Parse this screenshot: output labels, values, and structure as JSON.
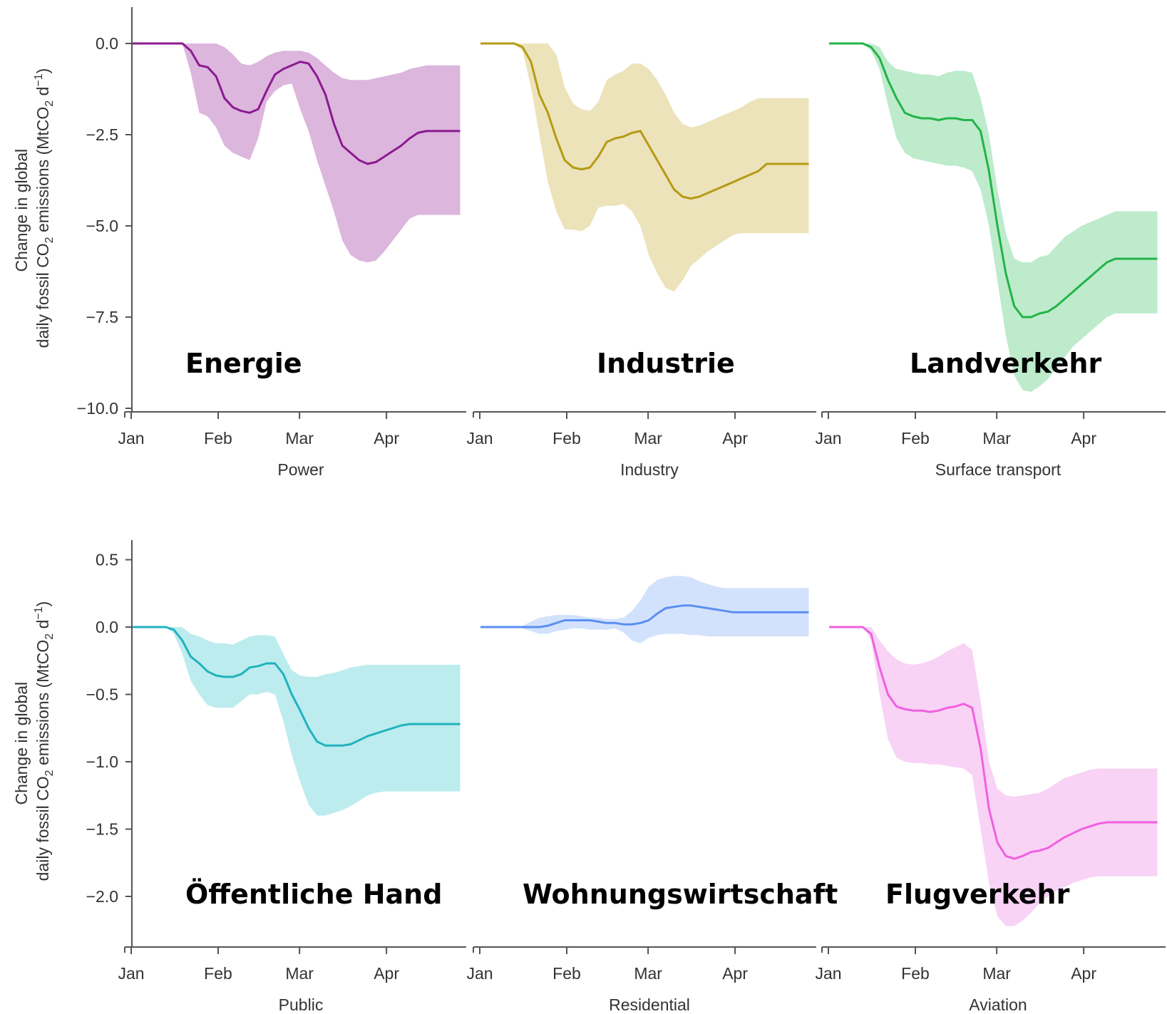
{
  "months": [
    "Jan",
    "Feb",
    "Mar",
    "Apr"
  ],
  "y_axis_label": {
    "line1": "Change in global",
    "line2": "daily fossil CO",
    "sub": "2",
    "line2_rest": " emissions (MtCO",
    "sub2": "2",
    "unit_rest": " d",
    "sup": "−1",
    "close": ")"
  },
  "chart_data": [
    {
      "type": "area",
      "xlabel": "Power",
      "annotation": "Energie",
      "color": "#8b1a8f",
      "fill": "#dcb6dd",
      "ylim": [
        -10,
        1
      ],
      "yticks": [
        0.0,
        -2.5,
        -5.0,
        -7.5,
        -10.0
      ],
      "x_days": [
        0,
        3,
        6,
        9,
        12,
        15,
        18,
        21,
        24,
        27,
        30,
        33,
        36,
        39,
        42,
        45,
        48,
        51,
        54,
        57,
        60,
        63,
        66,
        69,
        72,
        75,
        78,
        81,
        84,
        87,
        90,
        93,
        96,
        99,
        102,
        105,
        108,
        111,
        114,
        117
      ],
      "mean": [
        0,
        0,
        0,
        0,
        0,
        0,
        0,
        -0.2,
        -0.6,
        -0.65,
        -0.9,
        -1.5,
        -1.75,
        -1.85,
        -1.9,
        -1.8,
        -1.3,
        -0.85,
        -0.7,
        -0.6,
        -0.5,
        -0.55,
        -0.9,
        -1.4,
        -2.2,
        -2.8,
        -3.0,
        -3.2,
        -3.3,
        -3.25,
        -3.1,
        -2.95,
        -2.8,
        -2.6,
        -2.45,
        -2.4,
        -2.4,
        -2.4,
        -2.4,
        -2.4
      ],
      "upper": [
        0,
        0,
        0,
        0,
        0,
        0,
        0,
        0,
        0,
        0,
        0,
        -0.1,
        -0.3,
        -0.55,
        -0.6,
        -0.5,
        -0.35,
        -0.25,
        -0.2,
        -0.2,
        -0.2,
        -0.25,
        -0.4,
        -0.6,
        -0.8,
        -0.95,
        -1.0,
        -1.0,
        -1.0,
        -0.95,
        -0.9,
        -0.85,
        -0.8,
        -0.7,
        -0.65,
        -0.6,
        -0.6,
        -0.6,
        -0.6,
        -0.6
      ],
      "lower": [
        0,
        0,
        0,
        0,
        0,
        0,
        0,
        -0.8,
        -1.9,
        -2.0,
        -2.3,
        -2.8,
        -3.0,
        -3.1,
        -3.2,
        -2.6,
        -1.6,
        -1.3,
        -1.15,
        -1.1,
        -1.8,
        -2.4,
        -3.2,
        -3.9,
        -4.6,
        -5.4,
        -5.8,
        -5.95,
        -6.0,
        -5.95,
        -5.7,
        -5.4,
        -5.1,
        -4.8,
        -4.7,
        -4.7,
        -4.7,
        -4.7,
        -4.7,
        -4.7
      ]
    },
    {
      "type": "area",
      "xlabel": "Industry",
      "annotation": "Industrie",
      "color": "#b69a14",
      "fill": "#ece3ba",
      "ylim": [
        -10,
        1
      ],
      "yticks": [
        0.0,
        -2.5,
        -5.0,
        -7.5,
        -10.0
      ],
      "x_days": [
        0,
        3,
        6,
        9,
        12,
        15,
        18,
        21,
        24,
        27,
        30,
        33,
        36,
        39,
        42,
        45,
        48,
        51,
        54,
        57,
        60,
        63,
        66,
        69,
        72,
        75,
        78,
        81,
        84,
        87,
        90,
        93,
        96,
        99,
        102,
        105,
        108,
        111,
        114,
        117
      ],
      "mean": [
        0,
        0,
        0,
        0,
        0,
        -0.1,
        -0.5,
        -1.4,
        -1.9,
        -2.6,
        -3.2,
        -3.4,
        -3.45,
        -3.4,
        -3.1,
        -2.7,
        -2.6,
        -2.55,
        -2.45,
        -2.4,
        -2.8,
        -3.2,
        -3.6,
        -4.0,
        -4.2,
        -4.25,
        -4.2,
        -4.1,
        -4.0,
        -3.9,
        -3.8,
        -3.7,
        -3.6,
        -3.5,
        -3.3,
        -3.3,
        -3.3,
        -3.3,
        -3.3,
        -3.3
      ],
      "upper": [
        0,
        0,
        0,
        0,
        0,
        0,
        0,
        0,
        0,
        -0.3,
        -1.2,
        -1.65,
        -1.8,
        -1.85,
        -1.6,
        -1.0,
        -0.85,
        -0.75,
        -0.55,
        -0.55,
        -0.7,
        -1.0,
        -1.4,
        -1.9,
        -2.2,
        -2.3,
        -2.25,
        -2.15,
        -2.05,
        -1.95,
        -1.85,
        -1.75,
        -1.6,
        -1.5,
        -1.5,
        -1.5,
        -1.5,
        -1.5,
        -1.5,
        -1.5
      ],
      "lower": [
        0,
        0,
        0,
        0,
        0,
        -0.2,
        -1.2,
        -2.5,
        -3.8,
        -4.6,
        -5.1,
        -5.1,
        -5.15,
        -5.0,
        -4.5,
        -4.45,
        -4.45,
        -4.4,
        -4.6,
        -5.0,
        -5.8,
        -6.3,
        -6.7,
        -6.8,
        -6.5,
        -6.1,
        -5.9,
        -5.7,
        -5.55,
        -5.4,
        -5.25,
        -5.2,
        -5.2,
        -5.2,
        -5.2,
        -5.2,
        -5.2,
        -5.2,
        -5.2,
        -5.2
      ]
    },
    {
      "type": "area",
      "xlabel": "Surface transport",
      "annotation": "Landverkehr",
      "color": "#23b347",
      "fill": "#bdebcc",
      "ylim": [
        -10,
        1
      ],
      "yticks": [
        0.0,
        -2.5,
        -5.0,
        -7.5,
        -10.0
      ],
      "x_days": [
        0,
        3,
        6,
        9,
        12,
        15,
        18,
        21,
        24,
        27,
        30,
        33,
        36,
        39,
        42,
        45,
        48,
        51,
        54,
        57,
        60,
        63,
        66,
        69,
        72,
        75,
        78,
        81,
        84,
        87,
        90,
        93,
        96,
        99,
        102,
        105,
        108,
        111,
        114,
        117
      ],
      "mean": [
        0,
        0,
        0,
        0,
        0,
        -0.1,
        -0.4,
        -1.0,
        -1.5,
        -1.9,
        -2.0,
        -2.05,
        -2.05,
        -2.1,
        -2.05,
        -2.05,
        -2.1,
        -2.1,
        -2.4,
        -3.5,
        -5.0,
        -6.3,
        -7.2,
        -7.5,
        -7.5,
        -7.4,
        -7.35,
        -7.2,
        -7.0,
        -6.8,
        -6.6,
        -6.4,
        -6.2,
        -6.0,
        -5.9,
        -5.9,
        -5.9,
        -5.9,
        -5.9,
        -5.9
      ],
      "upper": [
        0,
        0,
        0,
        0,
        0,
        0,
        -0.1,
        -0.5,
        -0.7,
        -0.75,
        -0.8,
        -0.85,
        -0.85,
        -0.9,
        -0.8,
        -0.75,
        -0.75,
        -0.8,
        -1.5,
        -2.5,
        -4.0,
        -5.2,
        -5.9,
        -6.0,
        -6.0,
        -5.85,
        -5.8,
        -5.55,
        -5.3,
        -5.15,
        -5.0,
        -4.9,
        -4.8,
        -4.7,
        -4.6,
        -4.6,
        -4.6,
        -4.6,
        -4.6,
        -4.6
      ],
      "lower": [
        0,
        0,
        0,
        0,
        0,
        -0.2,
        -0.7,
        -1.7,
        -2.6,
        -3.0,
        -3.15,
        -3.2,
        -3.25,
        -3.3,
        -3.35,
        -3.35,
        -3.4,
        -3.5,
        -4.0,
        -5.0,
        -6.5,
        -8.0,
        -9.1,
        -9.5,
        -9.55,
        -9.4,
        -9.2,
        -8.9,
        -8.6,
        -8.3,
        -8.1,
        -7.9,
        -7.7,
        -7.5,
        -7.4,
        -7.4,
        -7.4,
        -7.4,
        -7.4,
        -7.4
      ]
    },
    {
      "type": "area",
      "xlabel": "Public",
      "annotation": "Öffentliche Hand",
      "color": "#20b2be",
      "fill": "#bdecee",
      "ylim": [
        -2.35,
        0.6
      ],
      "yticks": [
        0.5,
        0.0,
        -0.5,
        -1.0,
        -1.5,
        -2.0
      ],
      "x_days": [
        0,
        3,
        6,
        9,
        12,
        15,
        18,
        21,
        24,
        27,
        30,
        33,
        36,
        39,
        42,
        45,
        48,
        51,
        54,
        57,
        60,
        63,
        66,
        69,
        72,
        75,
        78,
        81,
        84,
        87,
        90,
        93,
        96,
        99,
        102,
        105,
        108,
        111,
        114,
        117
      ],
      "mean": [
        0,
        0,
        0,
        0,
        0,
        -0.02,
        -0.1,
        -0.22,
        -0.27,
        -0.33,
        -0.36,
        -0.37,
        -0.37,
        -0.35,
        -0.3,
        -0.29,
        -0.27,
        -0.27,
        -0.35,
        -0.5,
        -0.62,
        -0.75,
        -0.85,
        -0.88,
        -0.88,
        -0.88,
        -0.87,
        -0.84,
        -0.81,
        -0.79,
        -0.77,
        -0.75,
        -0.73,
        -0.72,
        -0.72,
        -0.72,
        -0.72,
        -0.72,
        -0.72,
        -0.72
      ],
      "upper": [
        0,
        0,
        0,
        0,
        0,
        0,
        0,
        -0.05,
        -0.07,
        -0.1,
        -0.12,
        -0.12,
        -0.13,
        -0.1,
        -0.07,
        -0.06,
        -0.06,
        -0.07,
        -0.2,
        -0.32,
        -0.36,
        -0.37,
        -0.37,
        -0.35,
        -0.34,
        -0.32,
        -0.3,
        -0.29,
        -0.28,
        -0.28,
        -0.28,
        -0.28,
        -0.28,
        -0.28,
        -0.28,
        -0.28,
        -0.28,
        -0.28,
        -0.28,
        -0.28
      ],
      "lower": [
        0,
        0,
        0,
        0,
        0,
        -0.05,
        -0.2,
        -0.4,
        -0.5,
        -0.58,
        -0.6,
        -0.6,
        -0.6,
        -0.55,
        -0.5,
        -0.5,
        -0.48,
        -0.5,
        -0.7,
        -0.95,
        -1.15,
        -1.32,
        -1.4,
        -1.4,
        -1.38,
        -1.36,
        -1.33,
        -1.29,
        -1.25,
        -1.23,
        -1.22,
        -1.22,
        -1.22,
        -1.22,
        -1.22,
        -1.22,
        -1.22,
        -1.22,
        -1.22,
        -1.22
      ]
    },
    {
      "type": "area",
      "xlabel": "Residential",
      "annotation": "Wohnungswirtschaft",
      "color": "#5b8ff0",
      "fill": "#d3e2fc",
      "ylim": [
        -2.35,
        0.6
      ],
      "yticks": [
        0.5,
        0.0,
        -0.5,
        -1.0,
        -1.5,
        -2.0
      ],
      "x_days": [
        0,
        3,
        6,
        9,
        12,
        15,
        18,
        21,
        24,
        27,
        30,
        33,
        36,
        39,
        42,
        45,
        48,
        51,
        54,
        57,
        60,
        63,
        66,
        69,
        72,
        75,
        78,
        81,
        84,
        87,
        90,
        93,
        96,
        99,
        102,
        105,
        108,
        111,
        114,
        117
      ],
      "mean": [
        0,
        0,
        0,
        0,
        0,
        0,
        0,
        0,
        0.01,
        0.03,
        0.05,
        0.05,
        0.05,
        0.05,
        0.04,
        0.03,
        0.03,
        0.02,
        0.02,
        0.03,
        0.05,
        0.1,
        0.14,
        0.15,
        0.16,
        0.16,
        0.15,
        0.14,
        0.13,
        0.12,
        0.11,
        0.11,
        0.11,
        0.11,
        0.11,
        0.11,
        0.11,
        0.11,
        0.11,
        0.11
      ],
      "upper": [
        0,
        0,
        0,
        0,
        0,
        0.01,
        0.04,
        0.07,
        0.08,
        0.09,
        0.09,
        0.09,
        0.08,
        0.07,
        0.07,
        0.06,
        0.06,
        0.07,
        0.12,
        0.2,
        0.3,
        0.35,
        0.37,
        0.38,
        0.38,
        0.37,
        0.34,
        0.32,
        0.3,
        0.29,
        0.29,
        0.29,
        0.29,
        0.29,
        0.29,
        0.29,
        0.29,
        0.29,
        0.29,
        0.29
      ],
      "lower": [
        0,
        0,
        0,
        0,
        0,
        -0.01,
        -0.03,
        -0.05,
        -0.05,
        -0.03,
        -0.02,
        -0.01,
        -0.01,
        -0.02,
        -0.02,
        -0.02,
        -0.01,
        -0.04,
        -0.1,
        -0.12,
        -0.08,
        -0.06,
        -0.05,
        -0.05,
        -0.05,
        -0.06,
        -0.06,
        -0.07,
        -0.07,
        -0.07,
        -0.07,
        -0.07,
        -0.07,
        -0.07,
        -0.07,
        -0.07,
        -0.07,
        -0.07,
        -0.07,
        -0.07
      ]
    },
    {
      "type": "area",
      "xlabel": "Aviation",
      "annotation": "Flugverkehr",
      "color": "#f060e0",
      "fill": "#f8d3f5",
      "ylim": [
        -2.35,
        0.6
      ],
      "yticks": [
        0.5,
        0.0,
        -0.5,
        -1.0,
        -1.5,
        -2.0
      ],
      "x_days": [
        0,
        3,
        6,
        9,
        12,
        15,
        18,
        21,
        24,
        27,
        30,
        33,
        36,
        39,
        42,
        45,
        48,
        51,
        54,
        57,
        60,
        63,
        66,
        69,
        72,
        75,
        78,
        81,
        84,
        87,
        90,
        93,
        96,
        99,
        102,
        105,
        108,
        111,
        114,
        117
      ],
      "mean": [
        0,
        0,
        0,
        0,
        0,
        -0.05,
        -0.3,
        -0.5,
        -0.59,
        -0.61,
        -0.62,
        -0.62,
        -0.63,
        -0.62,
        -0.6,
        -0.59,
        -0.57,
        -0.6,
        -0.9,
        -1.35,
        -1.6,
        -1.7,
        -1.72,
        -1.7,
        -1.67,
        -1.66,
        -1.64,
        -1.6,
        -1.56,
        -1.53,
        -1.5,
        -1.48,
        -1.46,
        -1.45,
        -1.45,
        -1.45,
        -1.45,
        -1.45,
        -1.45,
        -1.45
      ],
      "upper": [
        0,
        0,
        0,
        0,
        0,
        0,
        -0.1,
        -0.18,
        -0.24,
        -0.27,
        -0.28,
        -0.27,
        -0.25,
        -0.22,
        -0.18,
        -0.15,
        -0.12,
        -0.17,
        -0.55,
        -1.0,
        -1.2,
        -1.25,
        -1.26,
        -1.25,
        -1.24,
        -1.23,
        -1.2,
        -1.16,
        -1.12,
        -1.1,
        -1.08,
        -1.06,
        -1.05,
        -1.05,
        -1.05,
        -1.05,
        -1.05,
        -1.05,
        -1.05,
        -1.05
      ],
      "lower": [
        0,
        0,
        0,
        0,
        0,
        -0.1,
        -0.5,
        -0.83,
        -0.97,
        -1.0,
        -1.01,
        -1.01,
        -1.02,
        -1.02,
        -1.03,
        -1.04,
        -1.05,
        -1.1,
        -1.5,
        -1.9,
        -2.15,
        -2.22,
        -2.22,
        -2.18,
        -2.12,
        -2.05,
        -2.0,
        -1.96,
        -1.93,
        -1.9,
        -1.88,
        -1.86,
        -1.85,
        -1.85,
        -1.85,
        -1.85,
        -1.85,
        -1.85,
        -1.85,
        -1.85
      ]
    }
  ]
}
